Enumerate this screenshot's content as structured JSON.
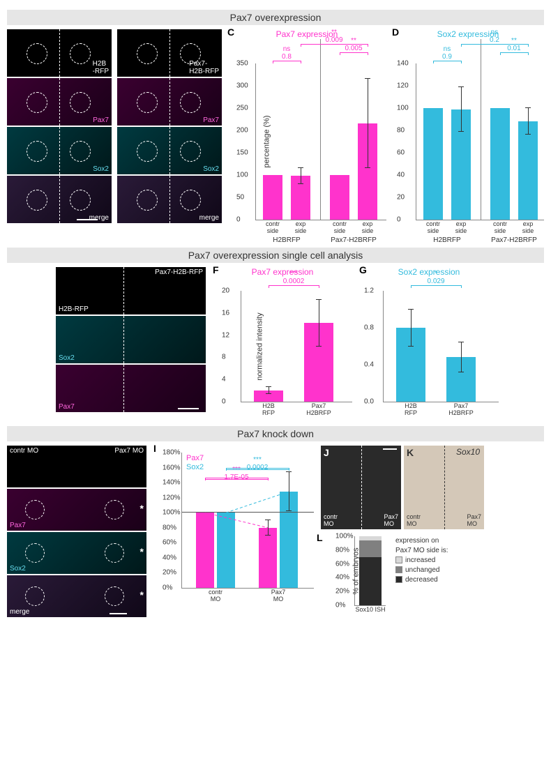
{
  "colors": {
    "magenta": "#ff33cc",
    "cyan": "#33bbdd",
    "gray_header": "#e6e6e6",
    "axis": "#888888",
    "text": "#333333",
    "legend_increased": "#d8d8d8",
    "legend_unchanged": "#808080",
    "legend_decreased": "#2a2a2a"
  },
  "section1": {
    "title": "Pax7 overexpression",
    "panelA": {
      "letter": "A",
      "labels_col": [
        "H2B\n-RFP",
        "Pax7",
        "Sox2",
        "merge"
      ]
    },
    "panelB": {
      "letter": "B",
      "labels_col": [
        "Pax7-\nH2B-RFP",
        "Pax7",
        "Sox2",
        "merge"
      ]
    },
    "chartC": {
      "letter": "C",
      "title": "Pax7 expression",
      "title_color": "#ff33cc",
      "ylabel": "percentage (%)",
      "ymax": 350,
      "ystep": 50,
      "bars": [
        {
          "x": 0,
          "v": 100,
          "lbl": "contr\nside"
        },
        {
          "x": 1,
          "v": 98,
          "err": 18,
          "lbl": "exp\nside"
        },
        {
          "x": 2,
          "v": 100,
          "lbl": "contr\nside"
        },
        {
          "x": 3,
          "v": 215,
          "err": 100,
          "lbl": "exp\nside"
        }
      ],
      "group_labels": [
        "H2BRFP",
        "Pax7-H2BRFP"
      ],
      "sigs": [
        {
          "a": 0,
          "b": 1,
          "txt1": "ns",
          "txt2": "0.8",
          "lvl": 1
        },
        {
          "a": 1,
          "b": 3,
          "txt1": "**",
          "txt2": "0.009",
          "lvl": 3
        },
        {
          "a": 2,
          "b": 3,
          "txt1": "**",
          "txt2": "0.005",
          "lvl": 2
        }
      ]
    },
    "chartD": {
      "letter": "D",
      "title": "Sox2 expression",
      "title_color": "#33bbdd",
      "ymax": 140,
      "ystep": 20,
      "bars": [
        {
          "x": 0,
          "v": 100,
          "lbl": "contr\nside"
        },
        {
          "x": 1,
          "v": 99,
          "err": 20,
          "lbl": "exp\nside"
        },
        {
          "x": 2,
          "v": 100,
          "lbl": "contr\nside"
        },
        {
          "x": 3,
          "v": 88,
          "err": 12,
          "lbl": "exp\nside"
        }
      ],
      "group_labels": [
        "H2BRFP",
        "Pax7-H2BRFP"
      ],
      "sigs": [
        {
          "a": 0,
          "b": 1,
          "txt1": "ns",
          "txt2": "0.9",
          "lvl": 1
        },
        {
          "a": 1,
          "b": 3,
          "txt1": "ns",
          "txt2": "0.2",
          "lvl": 3
        },
        {
          "a": 2,
          "b": 3,
          "txt1": "**",
          "txt2": "0.01",
          "lvl": 2
        }
      ]
    }
  },
  "section2": {
    "title": "Pax7 overexpression single cell analysis",
    "panelE": {
      "letter": "E",
      "row_labels": [
        "H2B-RFP",
        "Pax7-H2B-RFP"
      ],
      "side_labels": [
        "",
        "Sox2",
        "Pax7"
      ]
    },
    "chartF": {
      "letter": "F",
      "title": "Pax7 expression",
      "title_color": "#ff33cc",
      "ylabel": "normalized intensity",
      "ymax": 20,
      "ystep": 4,
      "bars": [
        {
          "x": 0,
          "v": 2,
          "err": 0.6,
          "lbl": "H2B\nRFP"
        },
        {
          "x": 1,
          "v": 14.2,
          "err": 4.2,
          "lbl": "Pax7\nH2BRFP"
        }
      ],
      "sig": {
        "txt1": "***",
        "txt2": "0.0002"
      }
    },
    "chartG": {
      "letter": "G",
      "title": "Sox2 expression",
      "title_color": "#33bbdd",
      "ymax": 1.2,
      "ystep": 0.4,
      "bars": [
        {
          "x": 0,
          "v": 0.8,
          "err": 0.2,
          "lbl": "H2B\nRFP"
        },
        {
          "x": 1,
          "v": 0.48,
          "err": 0.16,
          "lbl": "Pax7\nH2BRFP"
        }
      ],
      "sig": {
        "txt1": "*",
        "txt2": "0.029"
      }
    }
  },
  "section3": {
    "title": "Pax7 knock down",
    "panelH": {
      "letter": "H",
      "top_labels": [
        "contr MO",
        "Pax7 MO"
      ],
      "side_labels": [
        "",
        "Pax7",
        "Sox2",
        "merge"
      ]
    },
    "chartI": {
      "letter": "I",
      "legend": {
        "pax7": "Pax7",
        "sox2": "Sox2"
      },
      "ymax": 180,
      "ystep": 20,
      "groups": [
        "contr\nMO",
        "Pax7\nMO"
      ],
      "bars": [
        {
          "g": 0,
          "c": "m",
          "v": 100
        },
        {
          "g": 0,
          "c": "c",
          "v": 100
        },
        {
          "g": 1,
          "c": "m",
          "v": 80,
          "err": 10
        },
        {
          "g": 1,
          "c": "c",
          "v": 128,
          "err": 26
        }
      ],
      "sigs": [
        {
          "txt1": "***",
          "txt2": "1.7E-05",
          "color": "#ff33cc",
          "lvl": 1
        },
        {
          "txt1": "***",
          "txt2": "0.0002",
          "color": "#33bbdd",
          "lvl": 2
        }
      ],
      "reference_line": 100
    },
    "panelJ": {
      "letter": "J",
      "labels": [
        "contr\nMO",
        "Pax7\nMO"
      ]
    },
    "panelK": {
      "letter": "K",
      "title": "Sox10",
      "labels": [
        "contr\nMO",
        "Pax7\nMO"
      ]
    },
    "chartL": {
      "letter": "L",
      "ylabel": "% of embryos",
      "ymax": 100,
      "ystep": 20,
      "xlabel": "Sox10 ISH",
      "legend_title": "expression on\nPax7 MO side is:",
      "legend": [
        {
          "label": "increased",
          "v": 6,
          "color": "#d8d8d8"
        },
        {
          "label": "unchanged",
          "v": 24,
          "color": "#808080"
        },
        {
          "label": "decreased",
          "v": 70,
          "color": "#2a2a2a"
        }
      ]
    }
  }
}
